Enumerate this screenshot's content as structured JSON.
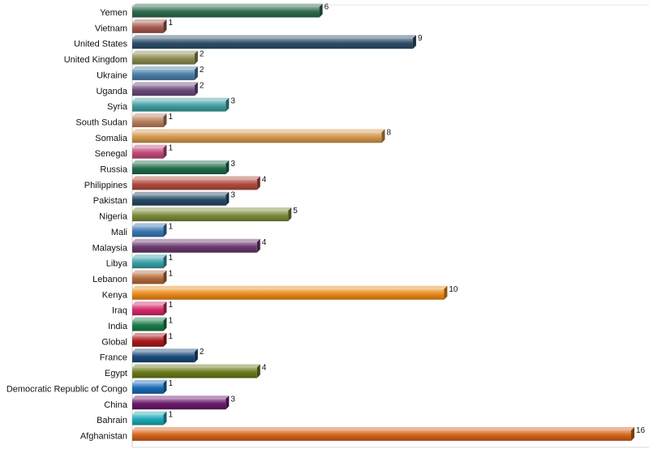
{
  "chart_data": {
    "type": "bar",
    "orientation": "horizontal",
    "style": "3d-beveled",
    "title": "",
    "xlabel": "",
    "ylabel": "",
    "xlim": [
      0,
      16
    ],
    "grid": false,
    "legend": "none",
    "categories": [
      "Yemen",
      "Vietnam",
      "United States",
      "United Kingdom",
      "Ukraine",
      "Uganda",
      "Syria",
      "South Sudan",
      "Somalia",
      "Senegal",
      "Russia",
      "Philippines",
      "Pakistan",
      "Nigeria",
      "Mali",
      "Malaysia",
      "Libya",
      "Lebanon",
      "Kenya",
      "Iraq",
      "India",
      "Global",
      "France",
      "Egypt",
      "Democratic Republic of Congo",
      "China",
      "Bahrain",
      "Afghanistan"
    ],
    "values": [
      6,
      1,
      9,
      2,
      2,
      2,
      3,
      1,
      8,
      1,
      3,
      4,
      3,
      5,
      1,
      4,
      1,
      1,
      10,
      1,
      1,
      1,
      2,
      4,
      1,
      3,
      1,
      16
    ],
    "colors": [
      "#2e6b4f",
      "#a4594f",
      "#2f4f6b",
      "#8a8a4e",
      "#4a7fa8",
      "#6b4a7a",
      "#3f9ea2",
      "#b97f5c",
      "#d4964a",
      "#c2487a",
      "#1f6b4a",
      "#b24a3e",
      "#264a66",
      "#7a8a3a",
      "#3a78b4",
      "#6b3a6e",
      "#3aa0a8",
      "#b56a3a",
      "#ec8a1a",
      "#d42a6a",
      "#1a7a4a",
      "#a81a1a",
      "#1a4a7a",
      "#6b7a1a",
      "#1a6ab4",
      "#6a1a6b",
      "#1aa8b4",
      "#d4641a"
    ]
  }
}
